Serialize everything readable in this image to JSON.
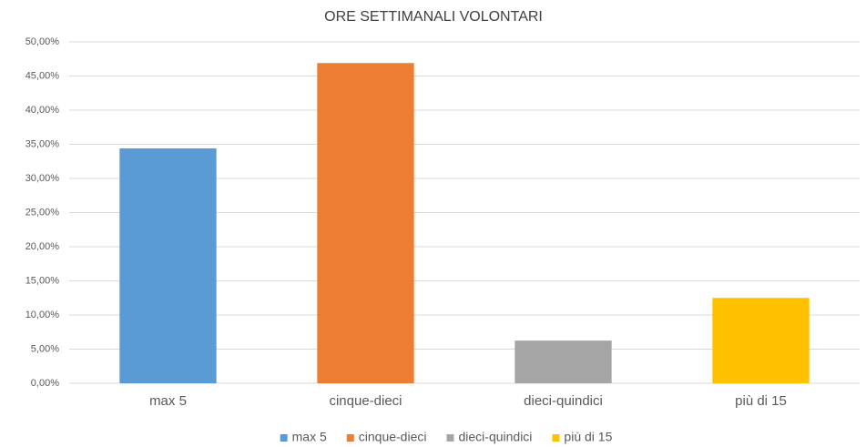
{
  "chart_data": {
    "type": "bar",
    "title": "ORE SETTIMANALI VOLONTARI",
    "categories": [
      "max 5",
      "cinque-dieci",
      "dieci-quindici",
      "più di 15"
    ],
    "values": [
      34.4,
      46.9,
      6.25,
      12.5
    ],
    "colors": [
      "#5b9bd5",
      "#ed7d31",
      "#a5a5a5",
      "#ffc000"
    ],
    "ylim": [
      0,
      50
    ],
    "yticks": [
      {
        "value": 0,
        "label": "0,00%"
      },
      {
        "value": 5,
        "label": "5,00%"
      },
      {
        "value": 10,
        "label": "10,00%"
      },
      {
        "value": 15,
        "label": "15,00%"
      },
      {
        "value": 20,
        "label": "20,00%"
      },
      {
        "value": 25,
        "label": "25,00%"
      },
      {
        "value": 30,
        "label": "30,00%"
      },
      {
        "value": 35,
        "label": "35,00%"
      },
      {
        "value": 40,
        "label": "40,00%"
      },
      {
        "value": 45,
        "label": "45,00%"
      },
      {
        "value": 50,
        "label": "50,00%"
      }
    ],
    "grid": true,
    "legend": "bottom"
  }
}
